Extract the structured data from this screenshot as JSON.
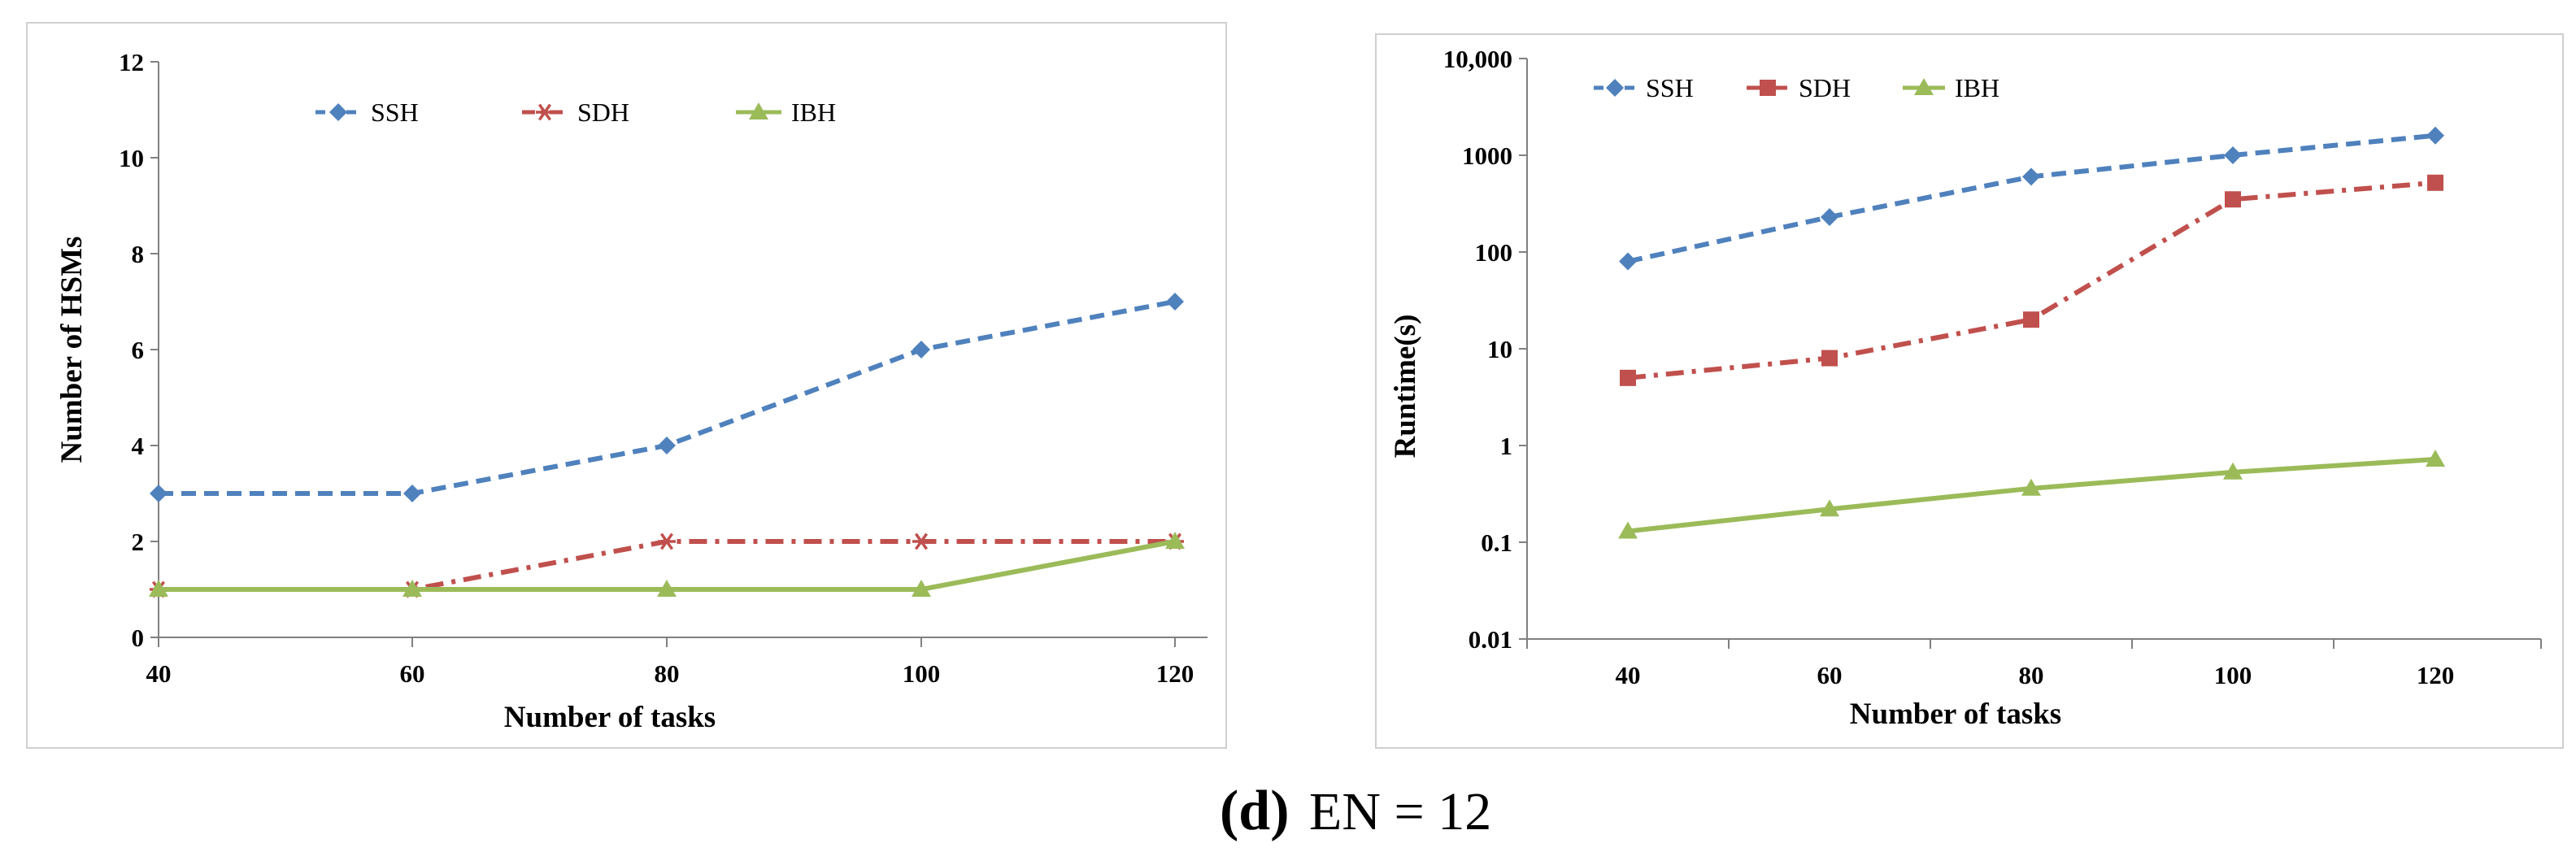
{
  "caption": {
    "letter": "(d)",
    "text": "EN = 12"
  },
  "chart_data": [
    {
      "type": "line",
      "title": "",
      "xlabel": "Number of tasks",
      "ylabel": "Number of HSMs",
      "x": [
        40,
        60,
        80,
        100,
        120
      ],
      "x_tick_labels": [
        "40",
        "60",
        "80",
        "100",
        "120"
      ],
      "ylim": [
        0,
        12
      ],
      "y_ticks": [
        0,
        2,
        4,
        6,
        8,
        10,
        12
      ],
      "y_tick_labels": [
        "0",
        "2",
        "4",
        "6",
        "8",
        "10",
        "12"
      ],
      "y_scale": "linear",
      "grid": false,
      "legend_position": "top",
      "series": [
        {
          "name": "SSH",
          "values": [
            3,
            3,
            4,
            6,
            7
          ],
          "color": "#4F81BD",
          "marker": "diamond",
          "dash": "dashed"
        },
        {
          "name": "SDH",
          "values": [
            1,
            1,
            2,
            2,
            2
          ],
          "color": "#C0504D",
          "marker": "asterisk",
          "dash": "dash-dot"
        },
        {
          "name": "IBH",
          "values": [
            1,
            1,
            1,
            1,
            2
          ],
          "color": "#9BBB59",
          "marker": "triangle",
          "dash": "solid"
        }
      ]
    },
    {
      "type": "line",
      "title": "",
      "xlabel": "Number of tasks",
      "ylabel": "Runtime(s)",
      "x": [
        40,
        60,
        80,
        100,
        120
      ],
      "x_tick_labels": [
        "40",
        "60",
        "80",
        "100",
        "120"
      ],
      "ylim": [
        0.01,
        10000
      ],
      "y_ticks": [
        0.01,
        0.1,
        1,
        10,
        100,
        1000,
        10000
      ],
      "y_tick_labels": [
        "0.01",
        "0.1",
        "1",
        "10",
        "100",
        "1000",
        "10,000"
      ],
      "y_scale": "log",
      "grid": false,
      "legend_position": "top-left",
      "series": [
        {
          "name": "SSH",
          "values": [
            80,
            230,
            600,
            1000,
            1600
          ],
          "color": "#4F81BD",
          "marker": "diamond",
          "dash": "dashed"
        },
        {
          "name": "SDH",
          "values": [
            5,
            8,
            20,
            350,
            520
          ],
          "color": "#C0504D",
          "marker": "square",
          "dash": "dash-dot"
        },
        {
          "name": "IBH",
          "values": [
            0.13,
            0.22,
            0.36,
            0.53,
            0.72
          ],
          "color": "#9BBB59",
          "marker": "triangle",
          "dash": "solid"
        }
      ]
    }
  ]
}
